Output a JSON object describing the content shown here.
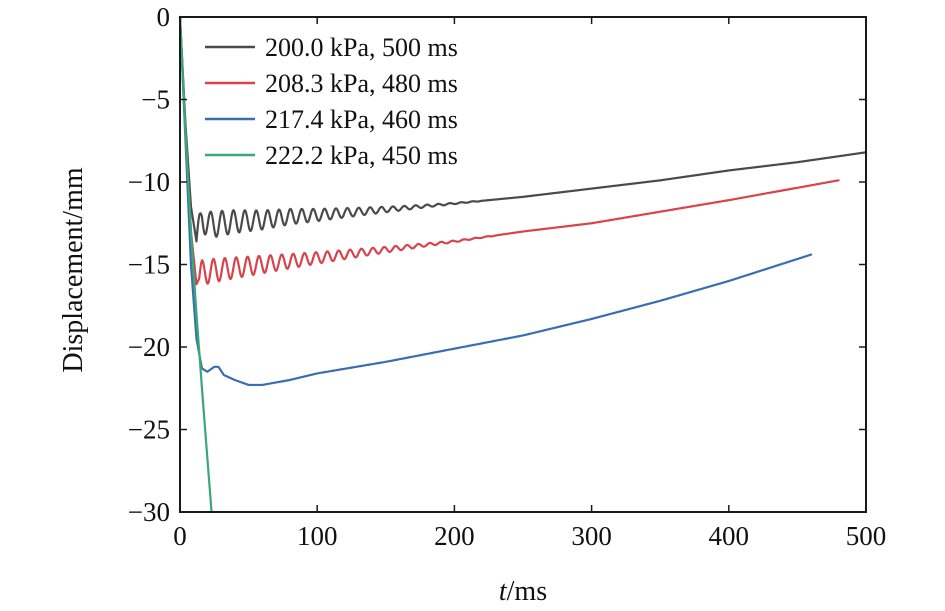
{
  "chart_data": {
    "type": "line",
    "xlabel_italic": "t",
    "xlabel_rest": "/ms",
    "ylabel": "Displacement/mm",
    "xlim": [
      0,
      500
    ],
    "ylim": [
      -30,
      0
    ],
    "xticks": [
      0,
      100,
      200,
      300,
      400,
      500
    ],
    "yticks": [
      0,
      -5,
      -10,
      -15,
      -20,
      -25,
      -30
    ],
    "ytick_labels": [
      "0",
      "−5",
      "−10",
      "−15",
      "−20",
      "−25",
      "−30"
    ],
    "grid": false,
    "legend_position": "top-left",
    "series": [
      {
        "name": "200.0 kPa, 500 ms",
        "color": "#4a4a4a",
        "x": [
          0,
          4,
          8,
          12,
          16,
          22,
          30,
          40,
          60,
          80,
          100,
          130,
          160,
          200,
          250,
          300,
          350,
          400,
          450,
          500
        ],
        "y": [
          0,
          -6.5,
          -11.5,
          -13.6,
          -12.2,
          -12.6,
          -12.5,
          -12.4,
          -12.3,
          -12.1,
          -12.0,
          -11.8,
          -11.6,
          -11.3,
          -10.9,
          -10.4,
          -9.9,
          -9.3,
          -8.8,
          -8.2
        ],
        "oscillation": {
          "start": 12,
          "end": 220,
          "period": 8.3,
          "amp_start": 0.85,
          "amp_end": 0.02
        }
      },
      {
        "name": "208.3 kPa, 480 ms",
        "color": "#d9434c",
        "x": [
          0,
          4,
          8,
          12,
          16,
          22,
          30,
          40,
          60,
          80,
          100,
          130,
          160,
          200,
          250,
          300,
          350,
          400,
          440,
          480
        ],
        "y": [
          0,
          -7.0,
          -13.0,
          -16.2,
          -15.5,
          -15.4,
          -15.3,
          -15.2,
          -15.0,
          -14.8,
          -14.6,
          -14.3,
          -14.0,
          -13.6,
          -13.0,
          -12.5,
          -11.8,
          -11.1,
          -10.5,
          -9.9
        ],
        "oscillation": {
          "start": 14,
          "end": 230,
          "period": 8.3,
          "amp_start": 0.75,
          "amp_end": 0.02
        }
      },
      {
        "name": "217.4 kPa, 460 ms",
        "color": "#3b6db3",
        "x": [
          0,
          4,
          8,
          12,
          16,
          20,
          25,
          28,
          32,
          40,
          50,
          60,
          80,
          100,
          150,
          200,
          250,
          300,
          350,
          400,
          430,
          460
        ],
        "y": [
          0,
          -7.5,
          -15.0,
          -19.5,
          -21.3,
          -21.5,
          -21.2,
          -21.2,
          -21.7,
          -22.0,
          -22.3,
          -22.3,
          -22.0,
          -21.6,
          -20.9,
          -20.1,
          -19.3,
          -18.3,
          -17.2,
          -16.0,
          -15.2,
          -14.4
        ]
      },
      {
        "name": "222.2 kPa, 450 ms",
        "color": "#3aa876",
        "x": [
          0,
          4,
          8,
          12,
          16,
          20,
          23
        ],
        "y": [
          0,
          -7.0,
          -13.0,
          -18.0,
          -22.5,
          -26.8,
          -30.0
        ]
      }
    ]
  }
}
